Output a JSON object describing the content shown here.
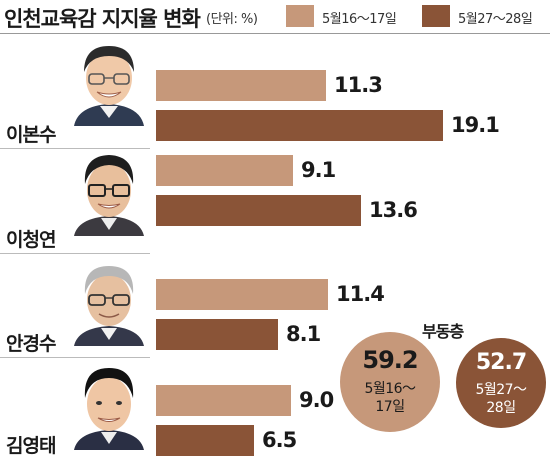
{
  "header": {
    "title": "인천교육감 지지율 변화",
    "unit": "(단위: %)"
  },
  "colors": {
    "period1": "#c6987a",
    "period2": "#8a5437"
  },
  "chart_data": {
    "type": "bar",
    "orientation": "horizontal",
    "title": "인천교육감 지지율 변화",
    "unit": "(단위: %)",
    "categories": [
      "이본수",
      "이청연",
      "안경수",
      "김영태"
    ],
    "series": [
      {
        "name": "5월16～17일",
        "values": [
          11.3,
          9.1,
          11.4,
          9.0
        ]
      },
      {
        "name": "5월27～28일",
        "values": [
          19.1,
          13.6,
          8.1,
          6.5
        ]
      }
    ],
    "xlim": [
      0,
      21
    ],
    "legend": "top-right",
    "grid": false,
    "annotations": {
      "undecided_label": "부동층",
      "undecided": [
        {
          "value": "59.2",
          "label_line1": "5월16～",
          "label_line2": "17일"
        },
        {
          "value": "52.7",
          "label_line1": "5월27～",
          "label_line2": "28일"
        }
      ]
    }
  }
}
